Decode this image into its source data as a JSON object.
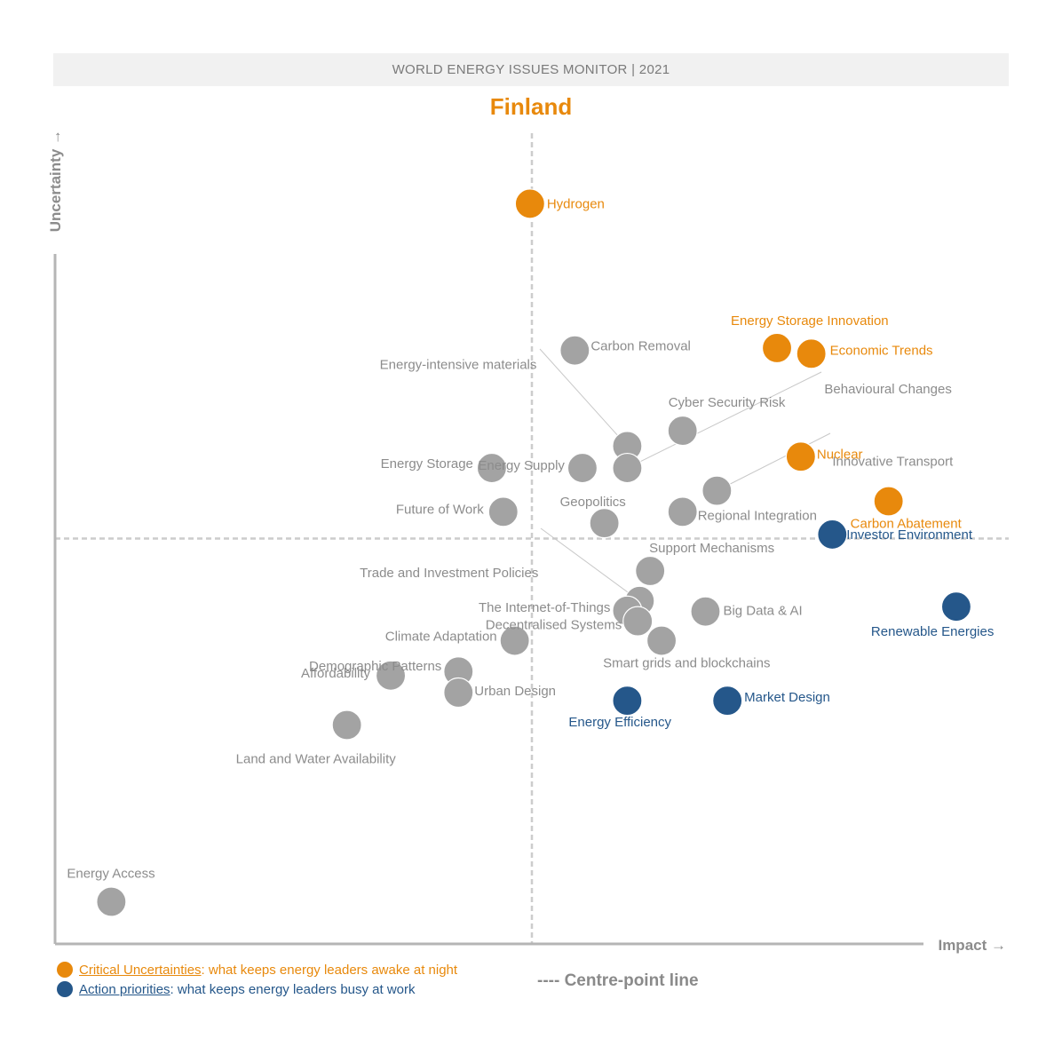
{
  "header": {
    "banner": "WORLD ENERGY ISSUES MONITOR | 2021",
    "country": "Finland"
  },
  "colors": {
    "grey": "#a3a3a3",
    "orange": "#e8890c",
    "blue": "#25578a",
    "axis": "#b5b5b5",
    "label_grey": "#8c8c8c"
  },
  "legend": {
    "critical_key": "Critical Uncertainties",
    "critical_text": ": what keeps energy leaders awake at night",
    "action_key": "Action priorities",
    "action_text": ": what keeps energy leaders busy at work",
    "centre_line": "---- Centre-point line"
  },
  "chart_data": {
    "type": "scatter",
    "title": "Finland",
    "xlabel": "Impact →",
    "ylabel": "Uncertainty →",
    "xlim": [
      0,
      100
    ],
    "ylim": [
      0,
      100
    ],
    "centre": {
      "x": 50,
      "y": 50
    },
    "points": [
      {
        "label": "Hydrogen",
        "x": 49.8,
        "y": 91.3,
        "group": "critical"
      },
      {
        "label": "Energy Storage Innovation",
        "x": 75.7,
        "y": 73.5,
        "group": "critical"
      },
      {
        "label": "Economic Trends",
        "x": 79.3,
        "y": 72.8,
        "group": "critical"
      },
      {
        "label": "Nuclear",
        "x": 78.2,
        "y": 60.1,
        "group": "critical"
      },
      {
        "label": "Carbon Abatement",
        "x": 87.4,
        "y": 54.6,
        "group": "critical"
      },
      {
        "label": "Investor Environment",
        "x": 81.5,
        "y": 50.5,
        "group": "action"
      },
      {
        "label": "Renewable Energies",
        "x": 94.5,
        "y": 41.6,
        "group": "action"
      },
      {
        "label": "Market Design",
        "x": 70.5,
        "y": 30.0,
        "group": "action"
      },
      {
        "label": "Energy Efficiency",
        "x": 60.0,
        "y": 30.0,
        "group": "action"
      },
      {
        "label": "Carbon Removal",
        "x": 54.5,
        "y": 73.2,
        "group": "other"
      },
      {
        "label": "Energy-intensive materials",
        "x": 60.0,
        "y": 61.4,
        "group": "other"
      },
      {
        "label": "Cyber Security Risk",
        "x": 65.8,
        "y": 63.3,
        "group": "other"
      },
      {
        "label": "Behavioural Changes",
        "x": 60.0,
        "y": 58.7,
        "group": "other"
      },
      {
        "label": "Energy Supply",
        "x": 55.3,
        "y": 58.7,
        "group": "other"
      },
      {
        "label": "Energy Storage",
        "x": 45.8,
        "y": 58.7,
        "group": "other"
      },
      {
        "label": "Innovative Transport",
        "x": 69.4,
        "y": 55.9,
        "group": "other"
      },
      {
        "label": "Future of Work",
        "x": 47.0,
        "y": 53.3,
        "group": "other"
      },
      {
        "label": "Regional Integration",
        "x": 65.8,
        "y": 53.3,
        "group": "other"
      },
      {
        "label": "Geopolitics",
        "x": 57.6,
        "y": 51.9,
        "group": "other"
      },
      {
        "label": "Support Mechanisms",
        "x": 62.4,
        "y": 46.0,
        "group": "other"
      },
      {
        "label": "Trade and Investment Policies",
        "x": 61.3,
        "y": 42.3,
        "group": "other"
      },
      {
        "label": "The Internet-of-Things",
        "x": 60.0,
        "y": 41.1,
        "group": "other"
      },
      {
        "label": "Decentralised Systems",
        "x": 61.1,
        "y": 39.8,
        "group": "other"
      },
      {
        "label": "Big Data & AI",
        "x": 68.2,
        "y": 41.0,
        "group": "other"
      },
      {
        "label": "Smart grids and blockchains",
        "x": 63.6,
        "y": 37.4,
        "group": "other"
      },
      {
        "label": "Climate Adaptation",
        "x": 48.2,
        "y": 37.4,
        "group": "other"
      },
      {
        "label": "Demographic Patterns",
        "x": 42.3,
        "y": 33.6,
        "group": "other"
      },
      {
        "label": "Affordability",
        "x": 35.2,
        "y": 33.1,
        "group": "other"
      },
      {
        "label": "Urban Design",
        "x": 42.3,
        "y": 31.0,
        "group": "other"
      },
      {
        "label": "Land and Water Availability",
        "x": 30.6,
        "y": 27.0,
        "group": "other"
      },
      {
        "label": "Energy Access",
        "x": 5.9,
        "y": 5.2,
        "group": "other"
      }
    ]
  }
}
